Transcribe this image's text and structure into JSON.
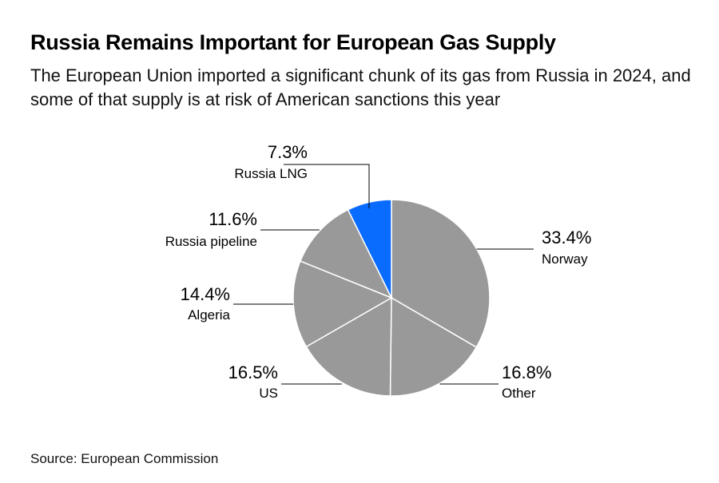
{
  "title": "Russia Remains Important for European Gas Supply",
  "subtitle": "The European Union imported a significant chunk of its gas from Russia in 2024, and some of that supply is at risk of American sanctions this year",
  "source": "Source: European Commission",
  "chart_data": {
    "type": "pie",
    "title": "Russia Remains Important for European Gas Supply",
    "unit": "%",
    "slices": [
      {
        "label": "Norway",
        "value": 33.4,
        "display": "33.4%",
        "color": "#999999"
      },
      {
        "label": "Other",
        "value": 16.8,
        "display": "16.8%",
        "color": "#999999"
      },
      {
        "label": "US",
        "value": 16.5,
        "display": "16.5%",
        "color": "#999999"
      },
      {
        "label": "Algeria",
        "value": 14.4,
        "display": "14.4%",
        "color": "#999999"
      },
      {
        "label": "Russia pipeline",
        "value": 11.6,
        "display": "11.6%",
        "color": "#999999"
      },
      {
        "label": "Russia LNG",
        "value": 7.3,
        "display": "7.3%",
        "color": "#0a6cff"
      }
    ]
  }
}
